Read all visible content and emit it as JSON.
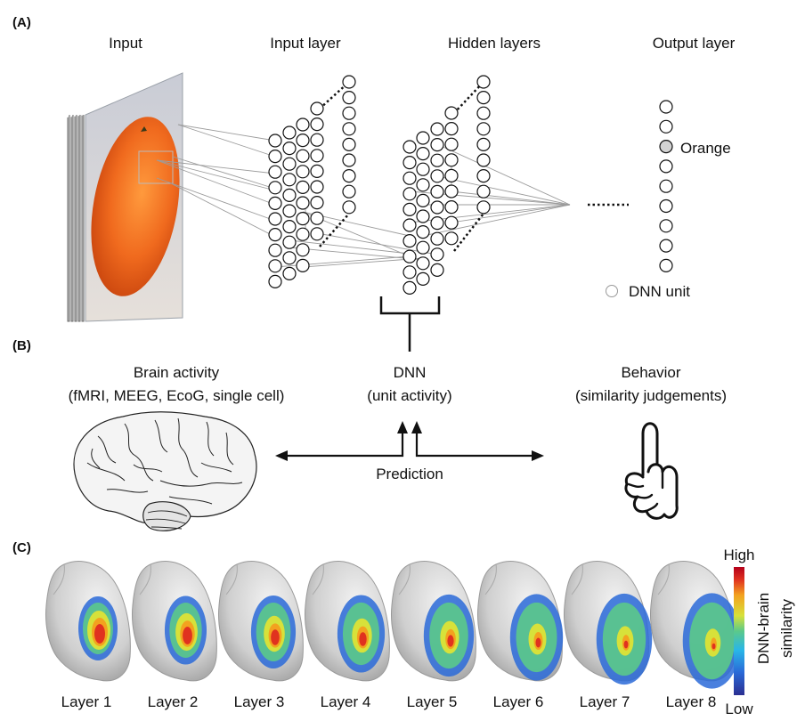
{
  "panel_a": {
    "label": "(A)",
    "titles": {
      "input": "Input",
      "input_layer": "Input layer",
      "hidden_layers": "Hidden layers",
      "output_layer": "Output layer"
    },
    "output_label": "Orange",
    "legend_label": "DNN unit"
  },
  "panel_b": {
    "label": "(B)",
    "brain_title": "Brain activity",
    "brain_subtitle": "(fMRI, MEEG, EcoG, single cell)",
    "dnn_title": "DNN",
    "dnn_subtitle": "(unit activity)",
    "behavior_title": "Behavior",
    "behavior_subtitle": "(similarity judgements)",
    "prediction": "Prediction"
  },
  "panel_c": {
    "label": "(C)",
    "layers": [
      "Layer 1",
      "Layer 2",
      "Layer 3",
      "Layer 4",
      "Layer 5",
      "Layer 6",
      "Layer 7",
      "Layer 8"
    ],
    "colorbar_high": "High",
    "colorbar_low": "Low",
    "colorbar_title_1": "DNN-brain",
    "colorbar_title_2": "similarity"
  },
  "colors": {
    "orange": "#f06a1e",
    "output_highlight": "#d3d3d3",
    "colorbar": [
      "#2b2f91",
      "#2a6ad8",
      "#29b6e8",
      "#5bc98a",
      "#d7e13a",
      "#f3a21f",
      "#e0321f",
      "#b5001a"
    ]
  }
}
